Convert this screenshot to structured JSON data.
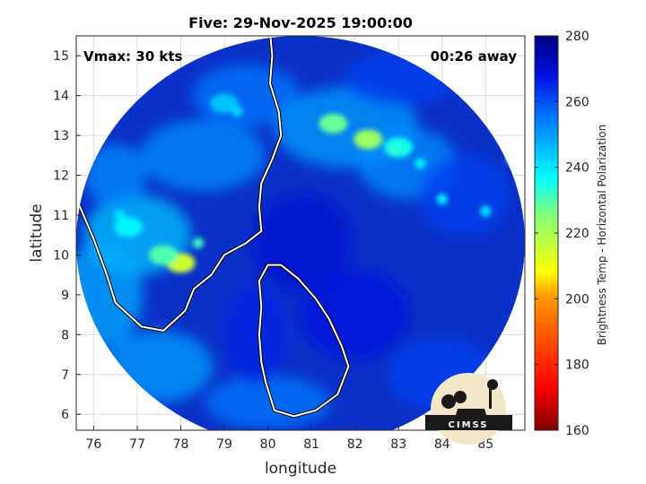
{
  "chart_data": {
    "type": "heatmap",
    "title": "Five: 29-Nov-2025 19:00:00",
    "xlabel": "longitude",
    "ylabel": "latitude",
    "xlim": [
      75.6,
      85.9
    ],
    "ylim": [
      5.6,
      15.5
    ],
    "xticks": [
      "76",
      "77",
      "78",
      "79",
      "80",
      "81",
      "82",
      "83",
      "84",
      "85"
    ],
    "yticks": [
      "6",
      "7",
      "8",
      "9",
      "10",
      "11",
      "12",
      "13",
      "14",
      "15"
    ],
    "grid": true,
    "annotations": {
      "vmax": "Vmax: 30 kts",
      "away": "00:26 away"
    },
    "colorbar": {
      "label": "Brightness Temp - Horizontal Polarization",
      "min": 160,
      "max": 280,
      "ticks": [
        "160",
        "180",
        "200",
        "220",
        "240",
        "260",
        "280"
      ],
      "colormap": [
        "#7f0000",
        "#ff0000",
        "#ff8000",
        "#ffff00",
        "#80ff80",
        "#00ffff",
        "#0080ff",
        "#0000ff",
        "#00008f"
      ]
    },
    "features": {
      "cold_cloud_regions": [
        {
          "lon": 81.5,
          "lat": 13.3,
          "value": 228
        },
        {
          "lon": 82.3,
          "lat": 12.9,
          "value": 222
        },
        {
          "lon": 78.0,
          "lat": 9.8,
          "value": 215
        },
        {
          "lon": 77.6,
          "lat": 10.0,
          "value": 230
        },
        {
          "lon": 76.8,
          "lat": 10.7,
          "value": 238
        },
        {
          "lon": 79.0,
          "lat": 13.8,
          "value": 245
        },
        {
          "lon": 83.0,
          "lat": 12.7,
          "value": 235
        }
      ],
      "background_land_value": 262,
      "background_ocean_value": 272,
      "cyclone_center": {
        "lon": 81.3,
        "lat": 10.3
      }
    }
  },
  "logo": {
    "text": "CIMSS"
  }
}
